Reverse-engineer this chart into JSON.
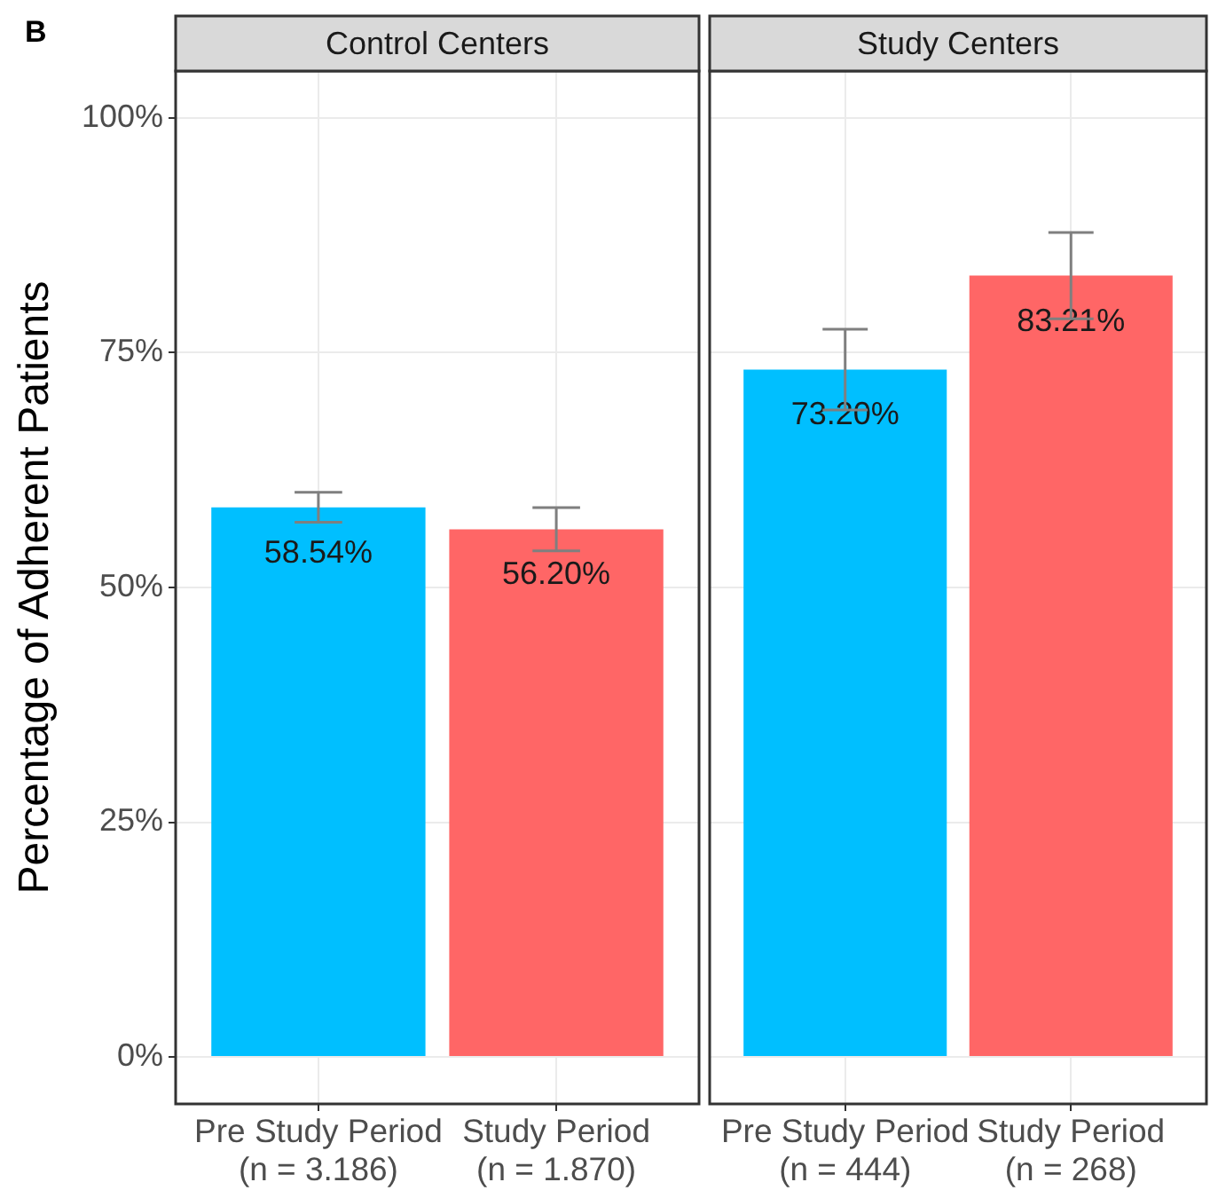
{
  "chart_data": [
    {
      "type": "bar",
      "title": "Control Centers",
      "ylabel": "Percentage of Adherent Patients",
      "categories": [
        "Pre Study Period\n(n = 3.186)",
        "Study Period\n(n = 1.870)"
      ],
      "values": [
        58.54,
        56.2
      ],
      "colors": [
        "#00bfff",
        "#ff6666"
      ],
      "errors": [
        1.6,
        2.3
      ],
      "value_labels": [
        "58.54%",
        "56.20%"
      ],
      "ylim": [
        -5,
        105
      ],
      "yticks": [
        {
          "value": 0,
          "label": "0%"
        },
        {
          "value": 25,
          "label": "25%"
        },
        {
          "value": 50,
          "label": "50%"
        },
        {
          "value": 75,
          "label": "75%"
        },
        {
          "value": 100,
          "label": "100%"
        }
      ],
      "grid": true,
      "annotations": [
        "B"
      ]
    },
    {
      "type": "bar",
      "title": "Study Centers",
      "categories": [
        "Pre Study Period\n(n = 444)",
        "Study Period\n(n = 268)"
      ],
      "values": [
        73.2,
        83.21
      ],
      "colors": [
        "#00bfff",
        "#ff6666"
      ],
      "errors": [
        4.3,
        4.6
      ],
      "value_labels": [
        "73.20%",
        "83.21%"
      ],
      "ylim": [
        -5,
        105
      ],
      "yticks": [
        0,
        25,
        50,
        75,
        100
      ],
      "grid": true,
      "tick_labels": "x"
    }
  ]
}
